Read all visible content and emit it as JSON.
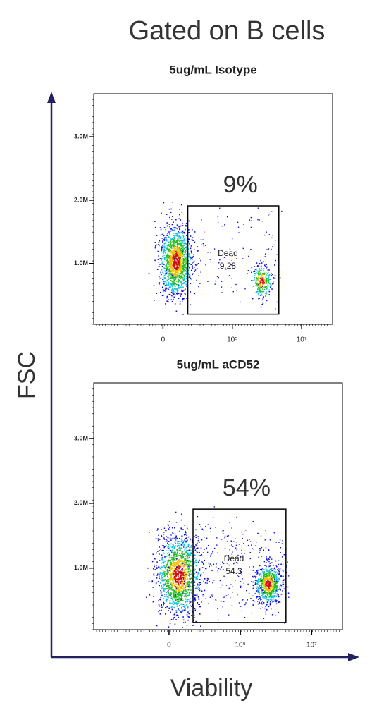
{
  "title": "Gated on B cells",
  "y_axis_label": "FSC",
  "x_axis_label": "Viability",
  "chart_data": [
    {
      "type": "scatter",
      "title": "5ug/mL Isotype",
      "xscale": "asinh",
      "xlim": [
        -100000,
        78000000
      ],
      "ylim": [
        40000,
        3680000
      ],
      "xticks": [
        0,
        {
          "value": 100000,
          "label": "10⁵"
        },
        {
          "value": 10000000,
          "label": "10⁷"
        }
      ],
      "yticks": [
        {
          "value": 1000000,
          "label": "1.0M"
        },
        {
          "value": 2000000,
          "label": "2.0M"
        },
        {
          "value": 3000000,
          "label": "3.0M"
        }
      ],
      "gate": {
        "name": "Dead",
        "value": 9.28,
        "xlim": [
          5000,
          2200000
        ],
        "ylim": [
          200000,
          1910000
        ]
      },
      "annotation": {
        "value": 9,
        "label": "9%"
      }
    },
    {
      "type": "scatter",
      "title": "5ug/mL aCD52",
      "xscale": "asinh",
      "xlim": [
        -130000,
        73000000
      ],
      "ylim": [
        50000,
        3860000
      ],
      "xticks": [
        0,
        {
          "value": 100000,
          "label": "10⁵"
        },
        {
          "value": 10000000,
          "label": "10⁷"
        }
      ],
      "yticks": [
        {
          "value": 1000000,
          "label": "1.0M"
        },
        {
          "value": 2000000,
          "label": "2.0M"
        },
        {
          "value": 3000000,
          "label": "3.0M"
        }
      ],
      "gate": {
        "name": "Dead",
        "value": 54.3,
        "xlim": [
          4500,
          1900000
        ],
        "ylim": [
          160000,
          1910000
        ]
      },
      "annotation": {
        "value": 54,
        "label": "54%"
      }
    }
  ]
}
